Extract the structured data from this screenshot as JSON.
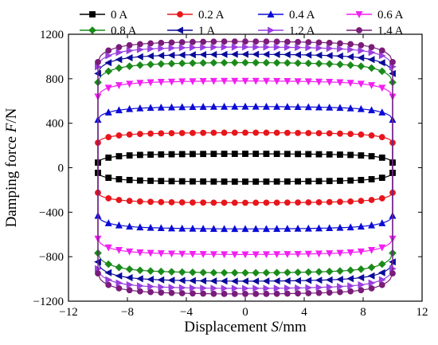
{
  "chart_data": {
    "type": "line",
    "title": "",
    "xlabel_prefix": "Displacement ",
    "xlabel_var": "S",
    "xlabel_unit": "/mm",
    "ylabel_prefix": "Damping force ",
    "ylabel_var": "F",
    "ylabel_unit": "/N",
    "xlim": [
      -12,
      12
    ],
    "ylim": [
      -1200,
      1200
    ],
    "x_ticks": [
      -12,
      -8,
      -4,
      0,
      4,
      8,
      12
    ],
    "y_ticks": [
      -1200,
      -800,
      -400,
      0,
      400,
      800,
      1200
    ],
    "grid": false,
    "legend_position": "top",
    "amplitude_mm": 10,
    "series": [
      {
        "name": "0 A",
        "color": "#000000",
        "marker": "square",
        "peak_force": 125,
        "edge_force": 25
      },
      {
        "name": "0.2 A",
        "color": "#e8151b",
        "marker": "circle",
        "peak_force": 315,
        "edge_force": 200
      },
      {
        "name": "0.4 A",
        "color": "#0b0bd6",
        "marker": "triangle-up",
        "peak_force": 550,
        "edge_force": 400
      },
      {
        "name": "0.6 A",
        "color": "#f21ff2",
        "marker": "triangle-down",
        "peak_force": 780,
        "edge_force": 600
      },
      {
        "name": "0.8 A",
        "color": "#1a8a1a",
        "marker": "diamond",
        "peak_force": 945,
        "edge_force": 720
      },
      {
        "name": "1 A",
        "color": "#0a0a9a",
        "marker": "triangle-left",
        "peak_force": 1020,
        "edge_force": 800
      },
      {
        "name": "1.2 A",
        "color": "#9a3de0",
        "marker": "triangle-right",
        "peak_force": 1085,
        "edge_force": 860
      },
      {
        "name": "1.4 A",
        "color": "#7a1c7a",
        "marker": "circle",
        "peak_force": 1135,
        "edge_force": 900
      }
    ]
  }
}
